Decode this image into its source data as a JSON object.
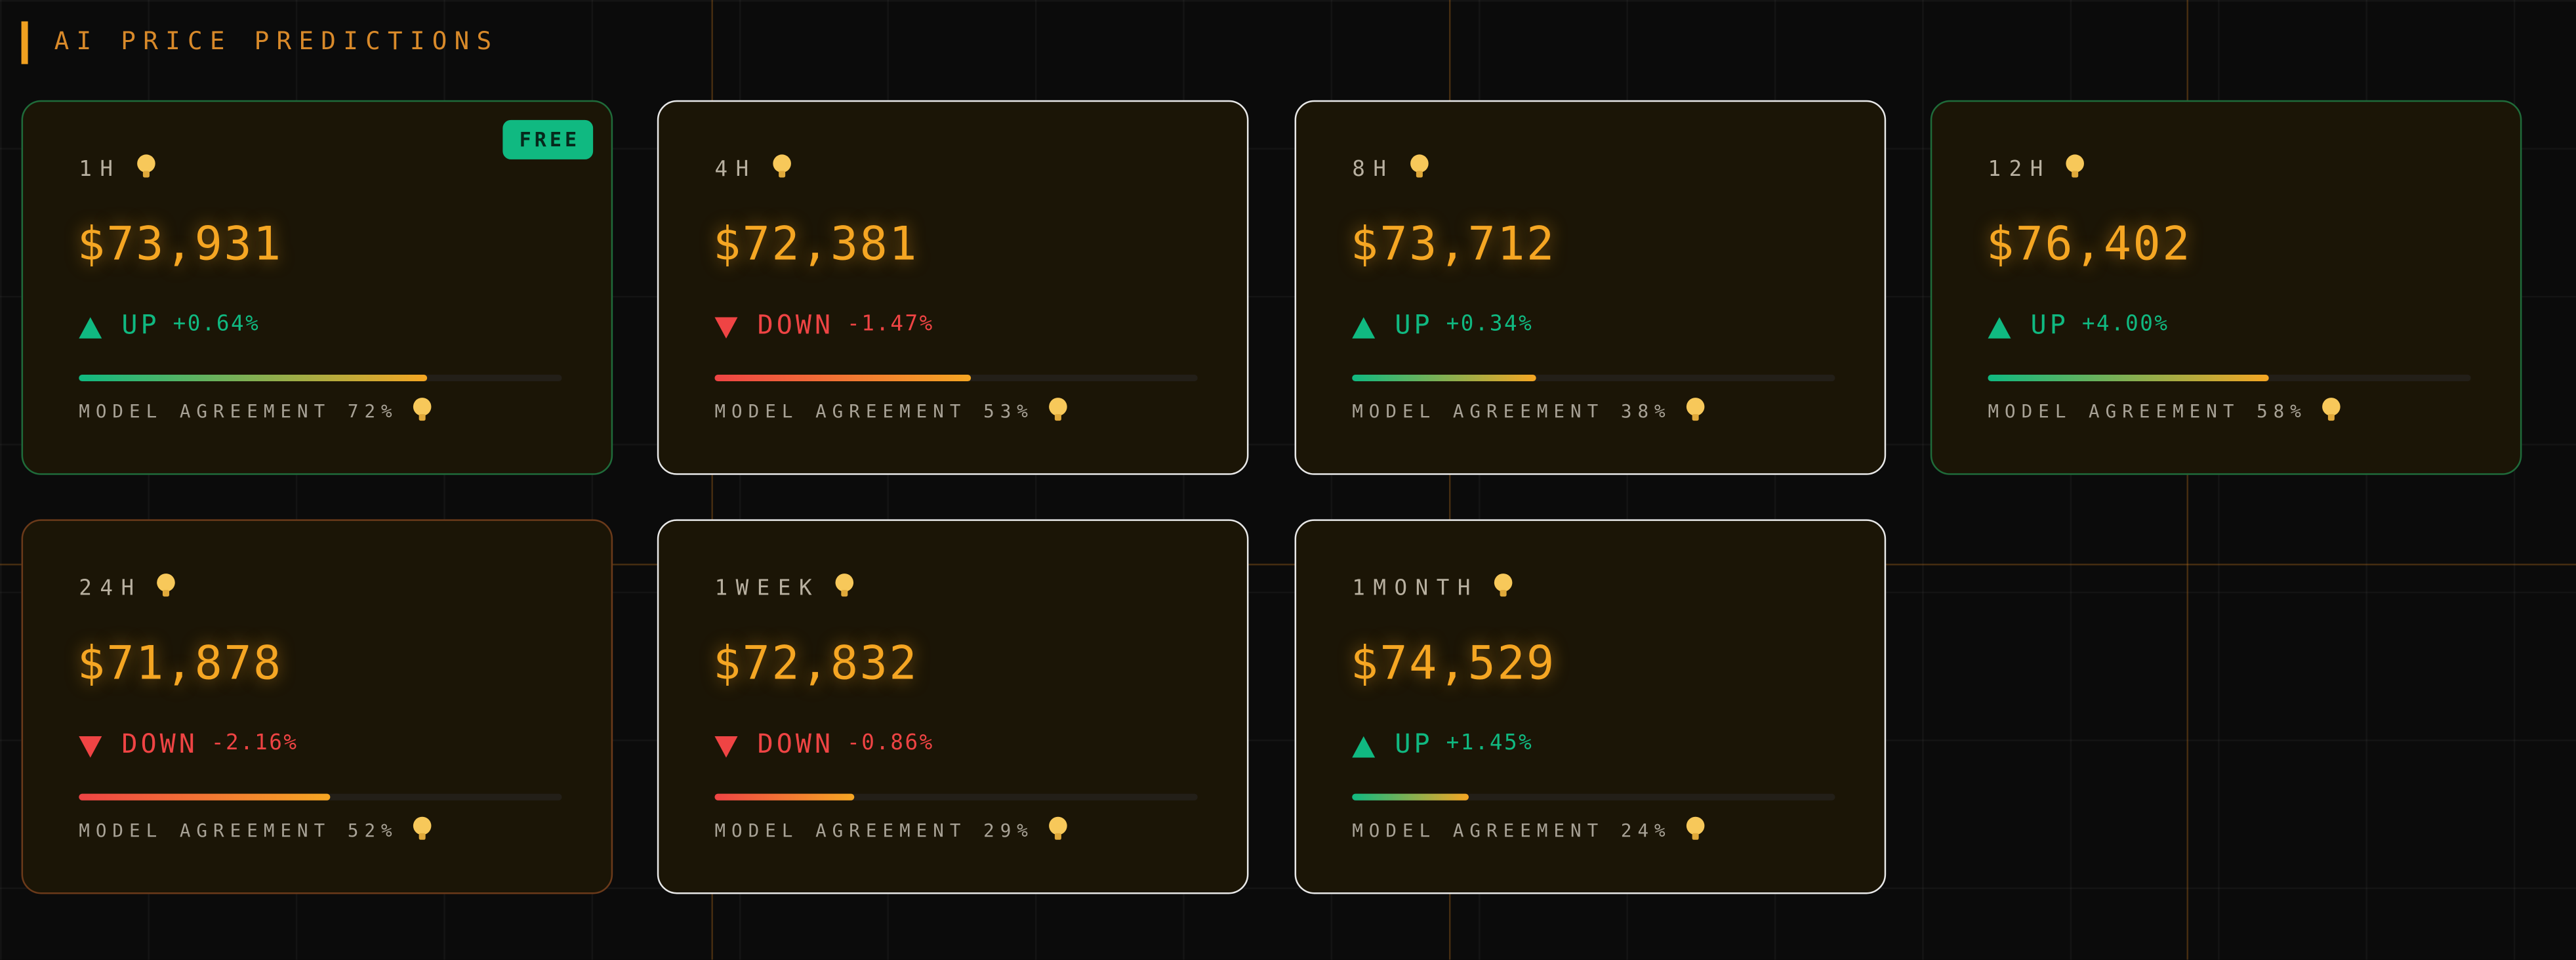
{
  "header": {
    "title": "AI PRICE PREDICTIONS"
  },
  "cards": [
    {
      "timeframe": "1H",
      "price": "$73,931",
      "direction": "UP",
      "change": "+0.64%",
      "agreement": 72,
      "agreement_label": "MODEL AGREEMENT 72%",
      "badge": "FREE",
      "border_color": "#1f6b3a"
    },
    {
      "timeframe": "4H",
      "price": "$72,381",
      "direction": "DOWN",
      "change": "-1.47%",
      "agreement": 53,
      "agreement_label": "MODEL AGREEMENT 53%",
      "border_color": "#e8e8e8"
    },
    {
      "timeframe": "8H",
      "price": "$73,712",
      "direction": "UP",
      "change": "+0.34%",
      "agreement": 38,
      "agreement_label": "MODEL AGREEMENT 38%",
      "border_color": "#e8e8e8"
    },
    {
      "timeframe": "12H",
      "price": "$76,402",
      "direction": "UP",
      "change": "+4.00%",
      "agreement": 58,
      "agreement_label": "MODEL AGREEMENT 58%",
      "border_color": "#1f6b3a"
    },
    {
      "timeframe": "24H",
      "price": "$71,878",
      "direction": "DOWN",
      "change": "-2.16%",
      "agreement": 52,
      "agreement_label": "MODEL AGREEMENT 52%",
      "border_color": "#6b3a1a"
    },
    {
      "timeframe": "1WEEK",
      "price": "$72,832",
      "direction": "DOWN",
      "change": "-0.86%",
      "agreement": 29,
      "agreement_label": "MODEL AGREEMENT 29%",
      "border_color": "#e8e8e8"
    },
    {
      "timeframe": "1MONTH",
      "price": "$74,529",
      "direction": "UP",
      "change": "+1.45%",
      "agreement": 24,
      "agreement_label": "MODEL AGREEMENT 24%",
      "border_color": "#e8e8e8"
    }
  ]
}
